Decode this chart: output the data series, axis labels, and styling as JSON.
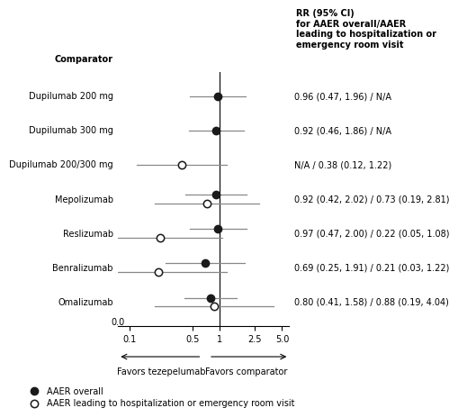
{
  "comparators": [
    "Dupilumab 200 mg",
    "Dupilumab 300 mg",
    "Dupilumab 200/300 mg",
    "Mepolizumab",
    "Reslizumab",
    "Benralizumab",
    "Omalizumab"
  ],
  "overall": {
    "point": [
      0.96,
      0.92,
      null,
      0.92,
      0.97,
      0.69,
      0.8
    ],
    "lo": [
      0.47,
      0.46,
      null,
      0.42,
      0.47,
      0.25,
      0.41
    ],
    "hi": [
      1.96,
      1.86,
      null,
      2.02,
      2.0,
      1.91,
      1.58
    ]
  },
  "hosp": {
    "point": [
      null,
      null,
      0.38,
      0.73,
      0.22,
      0.21,
      0.88
    ],
    "lo": [
      null,
      null,
      0.12,
      0.19,
      0.05,
      0.03,
      0.19
    ],
    "hi": [
      null,
      null,
      1.22,
      2.81,
      1.08,
      1.22,
      4.04
    ]
  },
  "rr_labels": [
    "0.96 (0.47, 1.96) / N/A",
    "0.92 (0.46, 1.86) / N/A",
    "N/A / 0.38 (0.12, 1.22)",
    "0.92 (0.42, 2.02) / 0.73 (0.19, 2.81)",
    "0.97 (0.47, 2.00) / 0.22 (0.05, 1.08)",
    "0.69 (0.25, 1.91) / 0.21 (0.03, 1.22)",
    "0.80 (0.41, 1.58) / 0.88 (0.19, 4.04)"
  ],
  "header_label": "RR (95% CI)\nfor AAER overall/AAER\nleading to hospitalization or\nemergency room visit",
  "x_ticks": [
    0.1,
    0.5,
    1.0,
    2.5,
    5.0
  ],
  "x_tick_labels": [
    "0.1",
    "0.5",
    "1",
    "2.5",
    "5.0"
  ],
  "xlabel_left": "Favors tezepelumab",
  "xlabel_right": "Favors comparator",
  "comparator_header": "Comparator",
  "legend_filled": "AAER overall",
  "legend_open": "AAER leading to hospitalization or emergency room visit",
  "background_color": "#ffffff",
  "line_color": "#888888",
  "point_color": "#1a1a1a",
  "marker_size": 6,
  "font_size_labels": 7,
  "font_size_ticks": 7,
  "font_size_header": 7,
  "font_size_legend": 7,
  "font_size_comparator": 7
}
